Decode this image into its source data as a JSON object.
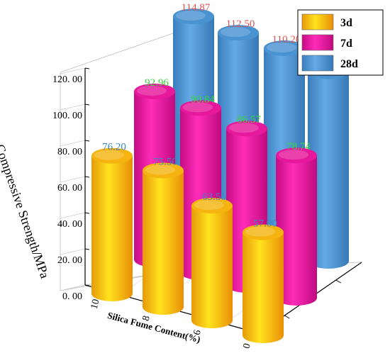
{
  "chart_data": {
    "type": "bar",
    "variant": "3d-cylinder",
    "title": "",
    "ylabel": "Compressive Strength/MPa",
    "xlabel": "Silica Fume Content(%)",
    "categories": [
      "10",
      "8",
      "6",
      "0"
    ],
    "ylim": [
      0,
      120
    ],
    "yticks": [
      "0. 00",
      "20. 00",
      "40. 00",
      "60. 00",
      "80. 00",
      "100. 00",
      "120. 00"
    ],
    "series": [
      {
        "name": "3d",
        "values": [
          76.2,
          75.5,
          63.5,
          57.0
        ],
        "labels": [
          "76.20",
          "75.50",
          "63.50",
          "57.00"
        ],
        "color": "#F5B410",
        "label_color": "#3E86C6"
      },
      {
        "name": "7d",
        "values": [
          92.96,
          90.84,
          86.57,
          78.74
        ],
        "labels": [
          "92.96",
          "90.84",
          "86.57",
          "78.74"
        ],
        "color": "#E6189C",
        "label_color": "#3BD43B"
      },
      {
        "name": "28d",
        "values": [
          114.87,
          112.5,
          110.2,
          104.91
        ],
        "labels": [
          "114.87",
          "112.50",
          "110.20",
          "104.91"
        ],
        "color": "#4A93D1",
        "label_color": "#E05050"
      }
    ],
    "legend_position": "top-right",
    "grid": true
  }
}
